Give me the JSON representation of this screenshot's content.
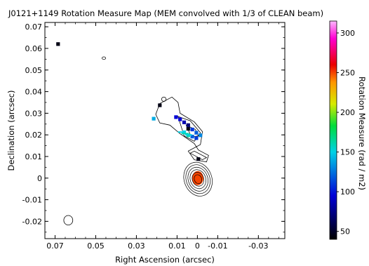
{
  "chart_data": {
    "type": "heatmap",
    "title": "J0121+1149 Rotation Measure Map (MEM convolved with 1/3 of CLEAN beam)",
    "xlabel": "Right Ascension (arcsec)",
    "ylabel": "Declination (arcsec)",
    "xlim": [
      0.075,
      -0.043
    ],
    "ylim": [
      -0.028,
      0.072
    ],
    "x_ticks": [
      0.07,
      0.05,
      0.03,
      0.01,
      0,
      -0.01,
      -0.03
    ],
    "x_tick_labels": [
      "0.07",
      "0.05",
      "0.03",
      "0.01",
      "0",
      "-0.01",
      "-0.03"
    ],
    "y_ticks": [
      0.07,
      0.06,
      0.05,
      0.04,
      0.03,
      0.02,
      0.01,
      0,
      -0.01,
      -0.02
    ],
    "y_tick_labels": [
      "0.07",
      "0.06",
      "0.05",
      "0.04",
      "0.03",
      "0.02",
      "0.01",
      "0",
      "-0.01",
      "-0.02"
    ],
    "colorbar": {
      "label": "Rotation Measure (rad / m2)",
      "range": [
        40,
        315
      ],
      "ticks": [
        50,
        100,
        150,
        200,
        250,
        300
      ],
      "tick_labels": [
        "50",
        "100",
        "150",
        "200",
        "250",
        "300"
      ]
    },
    "grid": false,
    "rm_pixels": [
      {
        "ra": 0.0685,
        "dec": 0.062,
        "rm": 45
      },
      {
        "ra": 0.0215,
        "dec": 0.0275,
        "rm": 140
      },
      {
        "ra": 0.0185,
        "dec": 0.0337,
        "rm": 45
      },
      {
        "ra": 0.0105,
        "dec": 0.0282,
        "rm": 95
      },
      {
        "ra": 0.0085,
        "dec": 0.0272,
        "rm": 95
      },
      {
        "ra": 0.0065,
        "dec": 0.0258,
        "rm": 85
      },
      {
        "ra": 0.0045,
        "dec": 0.0245,
        "rm": 70
      },
      {
        "ra": 0.0045,
        "dec": 0.0228,
        "rm": 45
      },
      {
        "ra": 0.0025,
        "dec": 0.0225,
        "rm": 110
      },
      {
        "ra": 0.0005,
        "dec": 0.021,
        "rm": 120
      },
      {
        "ra": -0.0015,
        "dec": 0.0198,
        "rm": 130
      },
      {
        "ra": 0.0065,
        "dec": 0.0212,
        "rm": 150
      },
      {
        "ra": 0.0045,
        "dec": 0.0198,
        "rm": 160
      },
      {
        "ra": 0.0025,
        "dec": 0.0192,
        "rm": 120
      },
      {
        "ra": 0.0005,
        "dec": 0.0185,
        "rm": 110
      },
      {
        "ra": -0.0005,
        "dec": 0.0088,
        "rm": 45
      },
      {
        "ra": -0.0002,
        "dec": 0.0,
        "rm": 250
      }
    ],
    "contours": [
      {
        "name": "core",
        "ra": -0.0003,
        "dec": -0.0005,
        "rx_levels": [
          0.0018,
          0.0028,
          0.0038,
          0.0048,
          0.0058,
          0.0068
        ],
        "ry_ratio": 1.25
      },
      {
        "name": "beam",
        "ra": 0.0635,
        "dec": -0.0195,
        "rx": 0.0022,
        "ry": 0.0022
      },
      {
        "name": "blob-north",
        "ra": 0.046,
        "dec": 0.0555,
        "rx": 0.0009,
        "ry": 0.0006
      },
      {
        "name": "blob-upper",
        "ra": 0.0165,
        "dec": 0.0365,
        "rx": 0.0011,
        "ry": 0.001
      }
    ]
  }
}
